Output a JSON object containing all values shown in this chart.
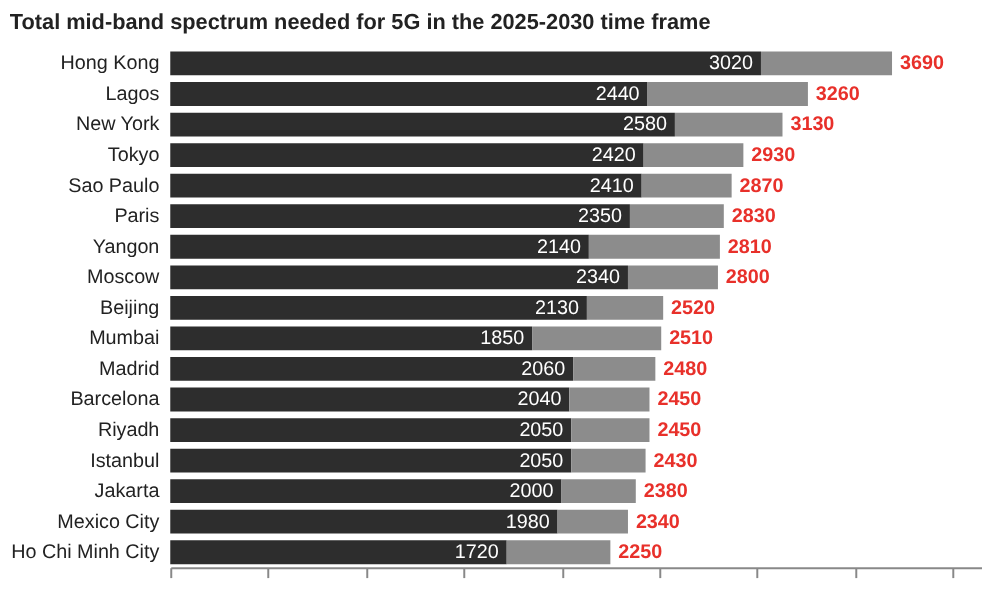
{
  "chart_data": {
    "type": "bar",
    "orientation": "horizontal",
    "stacked": true,
    "title": "Total mid-band spectrum needed for 5G in the 2025-2030 time frame",
    "categories": [
      "Hong Kong",
      "Lagos",
      "New York",
      "Tokyo",
      "Sao Paulo",
      "Paris",
      "Yangon",
      "Moscow",
      "Beijing",
      "Mumbai",
      "Madrid",
      "Barcelona",
      "Riyadh",
      "Istanbul",
      "Jakarta",
      "Mexico City",
      "Ho Chi Minh City"
    ],
    "series": [
      {
        "color": "#2d2d2d",
        "values": [
          3020,
          2440,
          2580,
          2420,
          2410,
          2350,
          2140,
          2340,
          2130,
          1850,
          2060,
          2040,
          2050,
          2050,
          2000,
          1980,
          1720
        ],
        "value_labels": [
          "3020",
          "2440",
          "2580",
          "2420",
          "2410",
          "2350",
          "2140",
          "2340",
          "2130",
          "1850",
          "2060",
          "2040",
          "2050",
          "2050",
          "2000",
          "1980",
          "1720"
        ]
      },
      {
        "color": "#8c8c8c",
        "values": [
          670,
          820,
          550,
          510,
          460,
          480,
          670,
          460,
          390,
          660,
          420,
          410,
          400,
          380,
          380,
          360,
          530
        ]
      }
    ],
    "totals": [
      "3690",
      "3260",
      "3130",
      "2930",
      "2870",
      "2830",
      "2810",
      "2800",
      "2520",
      "2510",
      "2480",
      "2450",
      "2450",
      "2430",
      "2380",
      "2340",
      "2250"
    ],
    "xlim": [
      0,
      4150
    ],
    "xticks": [
      {
        "value": 0,
        "label": null
      },
      {
        "value": 500,
        "label": null
      },
      {
        "value": 1000,
        "label": null
      },
      {
        "value": 1500,
        "label": null
      },
      {
        "value": 2000,
        "label": null
      },
      {
        "value": 2500,
        "label": null
      },
      {
        "value": 3000,
        "label": null
      },
      {
        "value": 3500,
        "label": null
      },
      {
        "value": 4000,
        "label": null
      }
    ],
    "tick_labels": "y",
    "grid": false
  }
}
